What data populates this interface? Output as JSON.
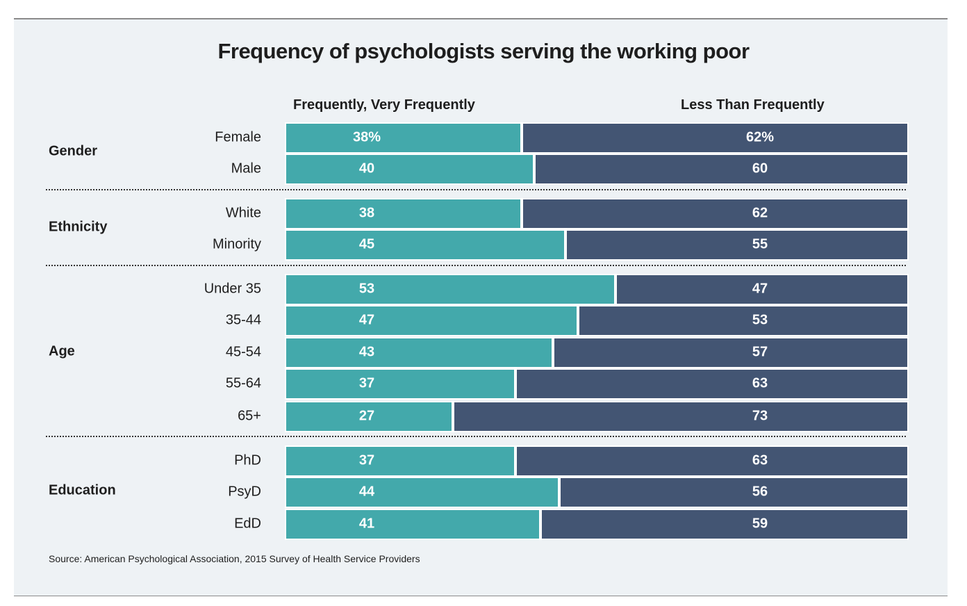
{
  "colors": {
    "frequent": "#43a9ab",
    "less": "#435573",
    "background": "#eef2f5"
  },
  "chart_data": {
    "type": "bar",
    "stacked": true,
    "orientation": "horizontal",
    "title": "Frequency of psychologists serving the working poor",
    "series": [
      {
        "name": "Frequently, Very Frequently"
      },
      {
        "name": "Less Than Frequently"
      }
    ],
    "groups": [
      {
        "name": "Gender",
        "rows": [
          {
            "label": "Female",
            "values": [
              38,
              62
            ],
            "labels": [
              "38%",
              "62%"
            ]
          },
          {
            "label": "Male",
            "values": [
              40,
              60
            ],
            "labels": [
              "40",
              "60"
            ]
          }
        ]
      },
      {
        "name": "Ethnicity",
        "rows": [
          {
            "label": "White",
            "values": [
              38,
              62
            ],
            "labels": [
              "38",
              "62"
            ]
          },
          {
            "label": "Minority",
            "values": [
              45,
              55
            ],
            "labels": [
              "45",
              "55"
            ]
          }
        ]
      },
      {
        "name": "Age",
        "rows": [
          {
            "label": "Under 35",
            "values": [
              53,
              47
            ],
            "labels": [
              "53",
              "47"
            ]
          },
          {
            "label": "35-44",
            "values": [
              47,
              53
            ],
            "labels": [
              "47",
              "53"
            ]
          },
          {
            "label": "45-54",
            "values": [
              43,
              57
            ],
            "labels": [
              "43",
              "57"
            ]
          },
          {
            "label": "55-64",
            "values": [
              37,
              63
            ],
            "labels": [
              "37",
              "63"
            ]
          },
          {
            "label": "65+",
            "values": [
              27,
              73
            ],
            "labels": [
              "27",
              "73"
            ]
          }
        ]
      },
      {
        "name": "Education",
        "rows": [
          {
            "label": "PhD",
            "values": [
              37,
              63
            ],
            "labels": [
              "37",
              "63"
            ]
          },
          {
            "label": "PsyD",
            "values": [
              44,
              56
            ],
            "labels": [
              "44",
              "56"
            ]
          },
          {
            "label": "EdD",
            "values": [
              41,
              59
            ],
            "labels": [
              "41",
              "59"
            ]
          }
        ]
      }
    ],
    "xlim": [
      0,
      100
    ]
  },
  "source": "Source: American Psychological Association, 2015 Survey of Health Service Providers"
}
